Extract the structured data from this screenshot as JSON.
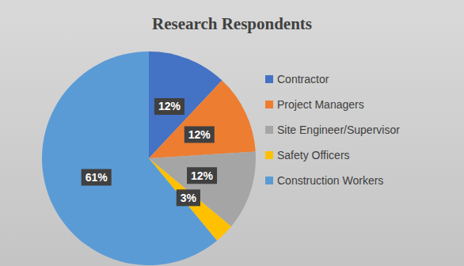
{
  "chart_data": {
    "type": "pie",
    "title": "Research Respondents",
    "categories": [
      "Contractor",
      "Project Managers",
      "Site Engineer/Supervisor",
      "Safety Officers",
      "Construction Workers"
    ],
    "values": [
      12,
      12,
      12,
      3,
      61
    ],
    "value_labels": [
      "12%",
      "12%",
      "12%",
      "3%",
      "61%"
    ],
    "colors": [
      "#4472c4",
      "#ed7d31",
      "#a5a5a5",
      "#ffc000",
      "#5b9bd5"
    ],
    "data_labels": true,
    "legend": "right"
  }
}
